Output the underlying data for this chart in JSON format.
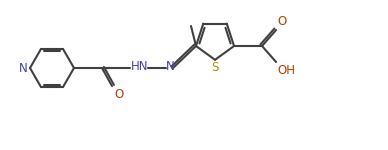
{
  "background_color": "#ffffff",
  "bond_color": "#404040",
  "atom_colors": {
    "N": "#4040b0",
    "O": "#b04000",
    "S": "#b09000",
    "C": "#404040"
  },
  "figsize": [
    3.88,
    1.5
  ],
  "dpi": 100
}
